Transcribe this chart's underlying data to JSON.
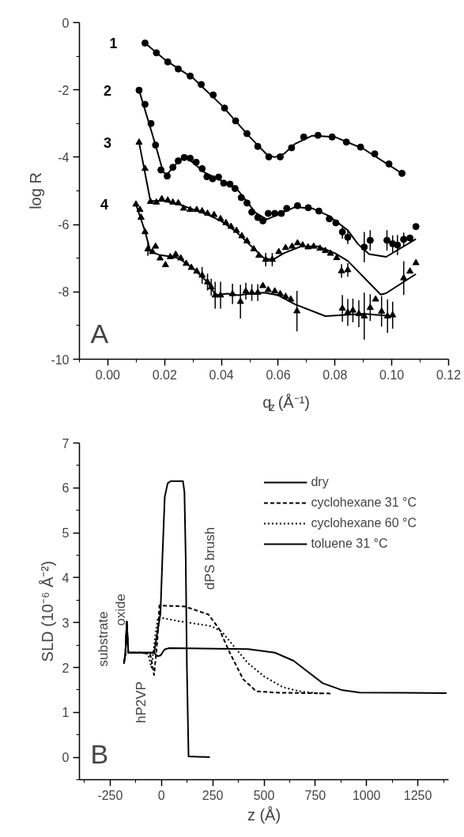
{
  "chart_data": [
    {
      "type": "scatter",
      "xlabel": "q$_{z}$ (Å⁻¹)",
      "ylabel": "log R",
      "xlim": [
        -0.01,
        0.12
      ],
      "ylim": [
        -10,
        0
      ],
      "xticks": [
        {
          "value": 0,
          "label": "0.00"
        },
        {
          "value": 0.02,
          "label": "0.02"
        },
        {
          "value": 0.04,
          "label": "0.04"
        },
        {
          "value": 0.06,
          "label": "0.06"
        },
        {
          "value": 0.08,
          "label": "0.08"
        },
        {
          "value": 0.1,
          "label": "0.10"
        },
        {
          "value": 0.12,
          "label": "0.12"
        }
      ],
      "yticks": [
        -10,
        -8,
        -6,
        -4,
        -2,
        0
      ],
      "grid": false,
      "annotations": [
        "A",
        {
          "text": "1",
          "x": 0.0131,
          "y": -0.61
        },
        {
          "text": "2",
          "x": 0.011,
          "y": -2.01
        },
        {
          "text": "3",
          "x": 0.011,
          "y": -3.56
        },
        {
          "text": "4",
          "x": 0.0099,
          "y": -5.4
        }
      ],
      "series": [
        {
          "color": "#000000",
          "marker": "circle",
          "x": [
            0.0131,
            0.0171,
            0.0211,
            0.0248,
            0.029,
            0.0329,
            0.0371,
            0.0411,
            0.045,
            0.049,
            0.0528,
            0.0567,
            0.0607,
            0.0647,
            0.069,
            0.074,
            0.079,
            0.084,
            0.089,
            0.094,
            0.099,
            0.1036
          ],
          "values": [
            -0.61,
            -0.9,
            -1.17,
            -1.38,
            -1.59,
            -1.84,
            -2.15,
            -2.54,
            -2.92,
            -3.3,
            -3.68,
            -3.99,
            -3.99,
            -3.72,
            -3.4,
            -3.35,
            -3.4,
            -3.55,
            -3.7,
            -3.9,
            -4.2,
            -4.48
          ]
        },
        {
          "type": "line",
          "color": "#000000",
          "x": [
            0.0131,
            0.02,
            0.03,
            0.04,
            0.05,
            0.056,
            0.0587,
            0.062,
            0.066,
            0.072,
            0.08,
            0.09,
            0.1036
          ],
          "values": [
            -0.61,
            -1.1,
            -1.65,
            -2.45,
            -3.4,
            -3.92,
            -4.0,
            -3.9,
            -3.6,
            -3.36,
            -3.4,
            -3.75,
            -4.48
          ]
        },
        {
          "color": "#000000",
          "marker": "circle",
          "x": [
            0.011,
            0.0131,
            0.0152,
            0.0168,
            0.0187,
            0.0209,
            0.0229,
            0.0248,
            0.0269,
            0.029,
            0.0311,
            0.0332,
            0.0349,
            0.0369,
            0.039,
            0.0408,
            0.043,
            0.0448,
            0.047,
            0.049,
            0.0507,
            0.0528,
            0.0546,
            0.0565,
            0.0588,
            0.0611,
            0.063,
            0.0668,
            0.0706,
            0.0743,
            0.078,
            0.0803,
            0.0826,
            0.0845,
            0.0903,
            0.0924,
            0.0983,
            0.1003,
            0.102,
            0.1042,
            0.1064,
            0.1085
          ],
          "values": [
            -2.01,
            -2.43,
            -3.0,
            -3.64,
            -4.38,
            -4.56,
            -4.3,
            -4.11,
            -4.01,
            -4.03,
            -4.15,
            -4.34,
            -4.58,
            -4.64,
            -4.59,
            -4.77,
            -4.8,
            -4.93,
            -5.2,
            -5.36,
            -5.63,
            -5.79,
            -5.89,
            -5.67,
            -5.67,
            -5.67,
            -5.52,
            -5.44,
            -5.5,
            -5.6,
            -5.83,
            -5.95,
            -6.22,
            -6.38,
            -6.67,
            -6.47,
            -6.47,
            -6.57,
            -6.61,
            -6.44,
            -6.4,
            -6.06
          ],
          "errors": [
            null,
            null,
            null,
            null,
            null,
            null,
            null,
            null,
            null,
            null,
            null,
            null,
            null,
            null,
            null,
            null,
            null,
            null,
            null,
            null,
            null,
            null,
            null,
            null,
            null,
            null,
            null,
            null,
            null,
            null,
            null,
            null,
            0.2,
            0.2,
            0.45,
            0.3,
            0.3,
            0.25,
            0.3,
            0.2,
            null,
            null
          ]
        },
        {
          "type": "line",
          "color": "#000000",
          "x": [
            0.011,
            0.0168,
            0.0195,
            0.021,
            0.025,
            0.028,
            0.034,
            0.04,
            0.046,
            0.052,
            0.056,
            0.06,
            0.066,
            0.072,
            0.078,
            0.0845,
            0.088,
            0.092,
            0.098,
            0.1085
          ],
          "values": [
            -2.01,
            -3.64,
            -4.45,
            -4.5,
            -4.1,
            -4.02,
            -4.45,
            -4.7,
            -5.0,
            -5.65,
            -5.85,
            -5.7,
            -5.48,
            -5.52,
            -5.75,
            -6.17,
            -6.57,
            -6.88,
            -6.96,
            -6.43
          ]
        },
        {
          "color": "#000000",
          "marker": "triangle",
          "x": [
            0.011,
            0.0131,
            0.015,
            0.0171,
            0.019,
            0.0211,
            0.0229,
            0.0248,
            0.0267,
            0.029,
            0.0313,
            0.0332,
            0.0351,
            0.0374,
            0.0397,
            0.0416,
            0.0434,
            0.0453,
            0.0472,
            0.049,
            0.0514,
            0.0532,
            0.0556,
            0.0579,
            0.0602,
            0.0626,
            0.0649,
            0.0668,
            0.0686,
            0.0705,
            0.0725,
            0.0747,
            0.0766,
            0.0784,
            0.0806,
            0.0823,
            0.0845,
            0.1042,
            0.1064,
            0.1085
          ],
          "values": [
            -3.56,
            -4.34,
            -5.32,
            -5.34,
            -5.24,
            -5.28,
            -5.34,
            -5.36,
            -5.52,
            -5.56,
            -5.56,
            -5.6,
            -5.67,
            -5.71,
            -5.83,
            -5.95,
            -6.06,
            -6.18,
            -6.34,
            -6.49,
            -6.73,
            -6.92,
            -7.04,
            -7.04,
            -6.81,
            -6.69,
            -6.65,
            -6.55,
            -6.61,
            -6.67,
            -6.65,
            -6.71,
            -6.78,
            -6.86,
            -6.99,
            -7.38,
            -7.35,
            -7.59,
            -7.39,
            -7.14
          ],
          "errors": [
            null,
            null,
            null,
            null,
            null,
            null,
            null,
            null,
            null,
            null,
            null,
            null,
            null,
            null,
            null,
            null,
            null,
            null,
            null,
            null,
            null,
            null,
            0.2,
            0.2,
            null,
            null,
            null,
            null,
            null,
            null,
            null,
            null,
            null,
            null,
            null,
            0.2,
            0.2,
            0.5,
            null,
            null
          ]
        },
        {
          "type": "line",
          "color": "#000000",
          "x": [
            0.011,
            0.015,
            0.02,
            0.025,
            0.03,
            0.035,
            0.04,
            0.045,
            0.05,
            0.055,
            0.058,
            0.062,
            0.068,
            0.074,
            0.08,
            0.0845,
            0.0961,
            0.098,
            0.1085
          ],
          "values": [
            -3.56,
            -5.3,
            -5.3,
            -5.4,
            -5.55,
            -5.7,
            -5.9,
            -6.2,
            -6.6,
            -7.0,
            -7.05,
            -6.85,
            -6.65,
            -6.65,
            -6.85,
            -7.08,
            -8.08,
            -8.04,
            -7.47
          ]
        },
        {
          "color": "#000000",
          "marker": "triangle",
          "x": [
            0.0099,
            0.0113,
            0.0117,
            0.0131,
            0.0141,
            0.0157,
            0.0168,
            0.0184,
            0.0203,
            0.022,
            0.0239,
            0.0257,
            0.0276,
            0.0294,
            0.0313,
            0.0332,
            0.0351,
            0.0364,
            0.0378,
            0.0397,
            0.0439,
            0.0467,
            0.0486,
            0.0507,
            0.0528,
            0.0546,
            0.0565,
            0.0588,
            0.0607,
            0.0626,
            0.0644,
            0.0666,
            0.0826,
            0.0845,
            0.0863,
            0.0884,
            0.0903,
            0.0924,
            0.0943,
            0.0964,
            0.0985,
            0.1003
          ],
          "values": [
            -5.4,
            -5.56,
            -5.79,
            -6.22,
            -6.73,
            -6.81,
            -6.65,
            -7.0,
            -7.2,
            -6.96,
            -6.89,
            -7.0,
            -7.16,
            -7.28,
            -7.39,
            -7.51,
            -7.71,
            -7.86,
            -8.1,
            -8.1,
            -8.06,
            -8.29,
            -7.98,
            -8.02,
            -8.02,
            -7.82,
            -7.94,
            -7.98,
            -8.06,
            -8.14,
            -8.22,
            -8.57,
            -8.49,
            -8.61,
            -8.55,
            -8.65,
            -8.72,
            -8.47,
            -8.22,
            -8.58,
            -8.72,
            -8.69
          ],
          "errors": [
            null,
            null,
            null,
            null,
            0.2,
            null,
            null,
            null,
            null,
            null,
            null,
            null,
            null,
            null,
            null,
            0.25,
            0.25,
            0.25,
            0.4,
            0.4,
            0.3,
            0.5,
            0.25,
            0.25,
            0.25,
            null,
            null,
            null,
            null,
            null,
            null,
            0.6,
            0.4,
            0.4,
            0.35,
            0.4,
            0.7,
            0.4,
            null,
            0.45,
            0.5,
            0.4
          ]
        },
        {
          "type": "line",
          "color": "#000000",
          "x": [
            0.0099,
            0.0131,
            0.015,
            0.018,
            0.022,
            0.025,
            0.03,
            0.035,
            0.038,
            0.042,
            0.046,
            0.05,
            0.055,
            0.06,
            0.066,
            0.0766,
            0.09,
            0.1003
          ],
          "values": [
            -5.4,
            -6.2,
            -6.8,
            -6.9,
            -6.95,
            -7.0,
            -7.3,
            -7.7,
            -8.1,
            -8.05,
            -8.1,
            -8.05,
            -8.02,
            -8.1,
            -8.37,
            -8.72,
            -8.65,
            -8.72
          ]
        }
      ]
    },
    {
      "type": "line",
      "xlabel": "z (Å)",
      "ylabel": "SLD (10⁻⁶ Å⁻²)",
      "xlim": [
        -400,
        1400
      ],
      "ylim": [
        -0.5,
        7
      ],
      "xticks": [
        -250,
        0,
        250,
        500,
        750,
        1000,
        1250
      ],
      "yticks": [
        0,
        1,
        2,
        3,
        4,
        5,
        6,
        7
      ],
      "grid": false,
      "legend": "top right",
      "annotations": [
        "B",
        "substrate",
        "oxide",
        "hP2VP",
        "dPS brush"
      ],
      "series": [
        {
          "name": "dry",
          "color": "#000000",
          "line_style": "solid",
          "x": [
            -183,
            -176,
            -169,
            -162,
            -100,
            -36,
            -5,
            5,
            16,
            30,
            45,
            105,
            112,
            118,
            124,
            132,
            236
          ],
          "values": [
            2.09,
            2.3,
            3.02,
            2.33,
            2.33,
            2.33,
            3.2,
            4.5,
            5.8,
            6.1,
            6.15,
            6.15,
            5.9,
            4.5,
            2.0,
            0.02,
            0
          ]
        },
        {
          "name": "cyclohexane 31 °C",
          "color": "#000000",
          "line_style": "dashed",
          "x": [
            -183,
            -176,
            -169,
            -162,
            -100,
            -55,
            -36,
            -20,
            -10,
            50,
            113,
            229,
            281,
            333,
            398,
            462,
            553,
            825
          ],
          "values": [
            2.09,
            2.3,
            3.02,
            2.33,
            2.33,
            2.3,
            1.83,
            2.6,
            3.38,
            3.37,
            3.36,
            3.18,
            2.86,
            2.33,
            1.74,
            1.47,
            1.44,
            1.42
          ]
        },
        {
          "name": "cyclohexane 60 °C",
          "color": "#000000",
          "line_style": "dotted",
          "x": [
            -183,
            -176,
            -169,
            -162,
            -100,
            -65,
            -49,
            -30,
            -17,
            87,
            243,
            294,
            359,
            423,
            501,
            592,
            683,
            780
          ],
          "values": [
            2.09,
            2.3,
            3.02,
            2.33,
            2.33,
            2.3,
            2.0,
            2.7,
            3.12,
            3.03,
            2.92,
            2.8,
            2.44,
            2.09,
            1.8,
            1.56,
            1.46,
            1.42
          ]
        },
        {
          "name": "toluene 31 °C",
          "color": "#000000",
          "line_style": "solid",
          "x": [
            -183,
            -176,
            -169,
            -162,
            -100,
            -36,
            -20,
            -4,
            15,
            35,
            423,
            553,
            644,
            709,
            786,
            877,
            967,
            1390
          ],
          "values": [
            2.09,
            2.3,
            3.02,
            2.33,
            2.33,
            2.33,
            2.25,
            2.27,
            2.4,
            2.43,
            2.41,
            2.33,
            2.15,
            1.92,
            1.65,
            1.5,
            1.44,
            1.43
          ]
        }
      ]
    }
  ]
}
